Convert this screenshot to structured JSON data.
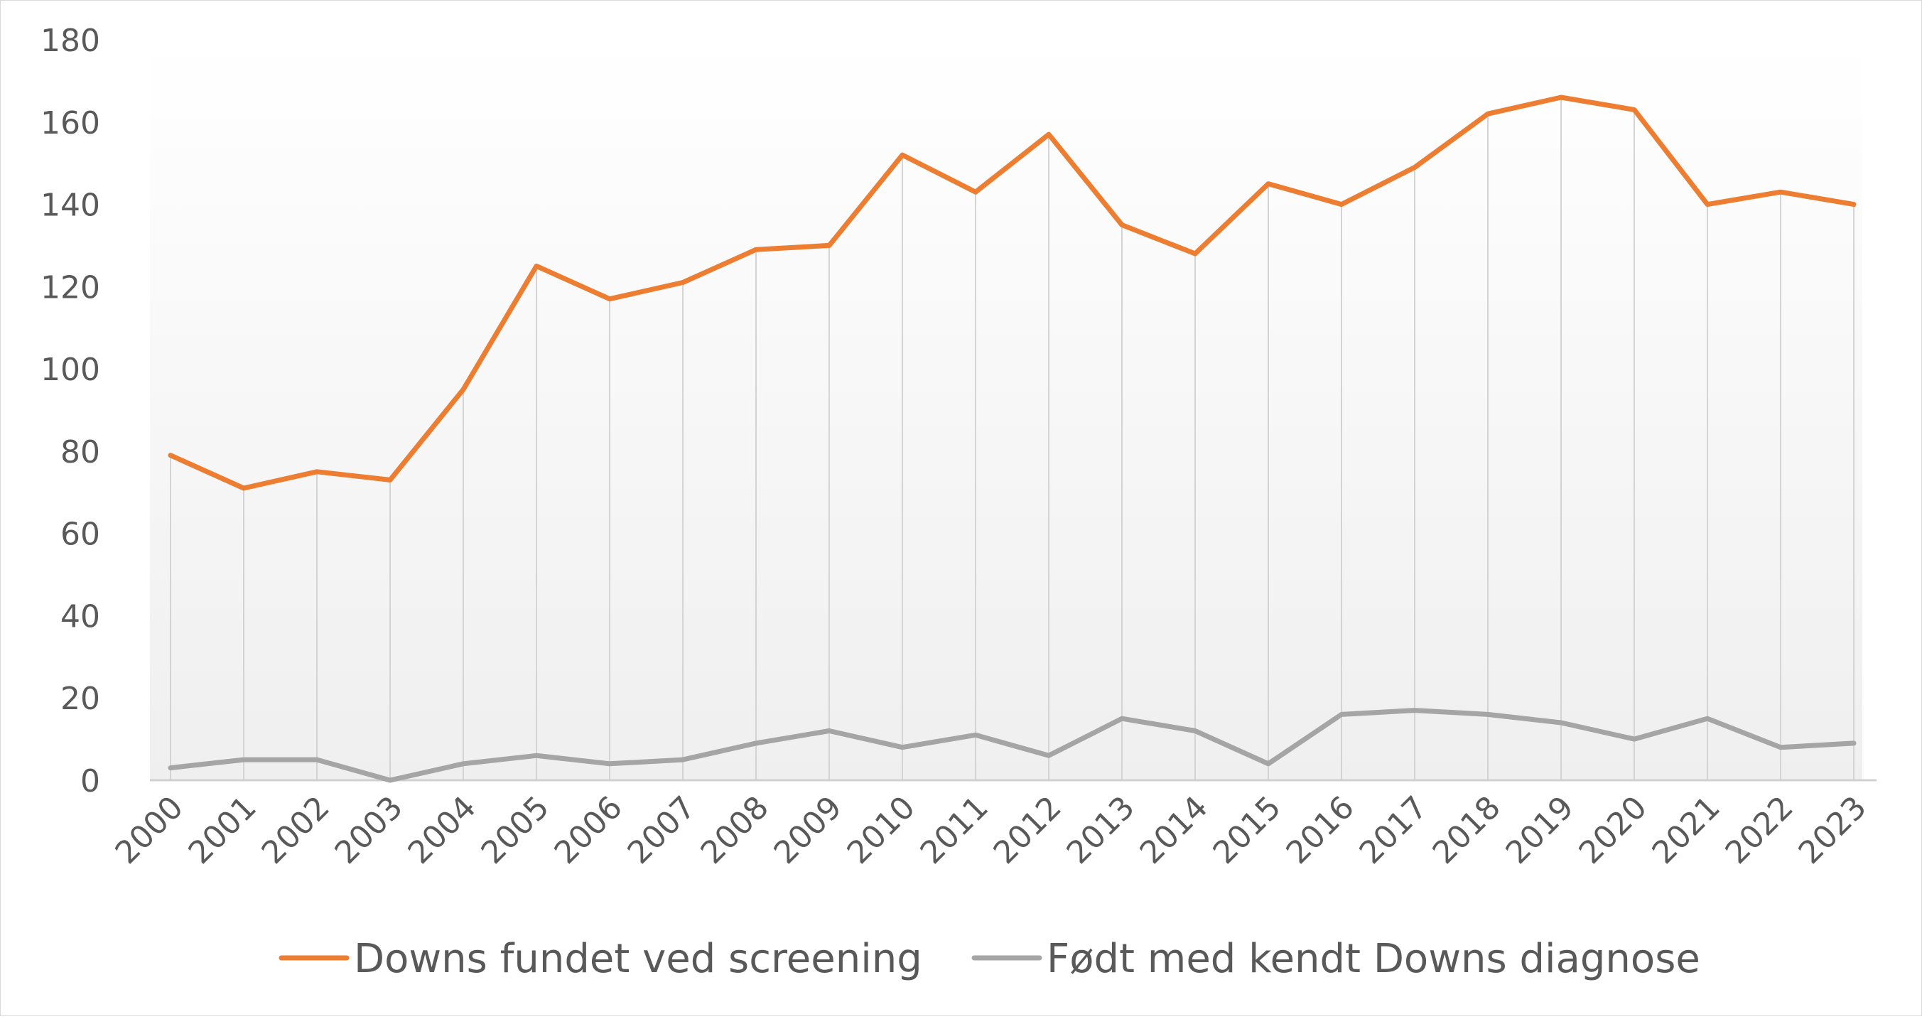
{
  "chart_data": {
    "type": "line",
    "title": "",
    "xlabel": "",
    "ylabel": "",
    "ylim": [
      0,
      180
    ],
    "yticks": [
      0,
      20,
      40,
      60,
      80,
      100,
      120,
      140,
      160,
      180
    ],
    "categories": [
      "2000",
      "2001",
      "2002",
      "2003",
      "2004",
      "2005",
      "2006",
      "2007",
      "2008",
      "2009",
      "2010",
      "2011",
      "2012",
      "2013",
      "2014",
      "2015",
      "2016",
      "2017",
      "2018",
      "2019",
      "2020",
      "2021",
      "2022",
      "2023"
    ],
    "series": [
      {
        "name": "Downs fundet ved screening",
        "color": "#ED7D31",
        "values": [
          79,
          71,
          75,
          73,
          95,
          125,
          117,
          121,
          129,
          130,
          152,
          143,
          157,
          135,
          128,
          145,
          140,
          149,
          162,
          166,
          163,
          140,
          143,
          140
        ]
      },
      {
        "name": "Født med kendt Downs diagnose",
        "color": "#A5A5A5",
        "values": [
          3,
          5,
          5,
          0,
          4,
          6,
          4,
          5,
          9,
          12,
          8,
          11,
          6,
          15,
          12,
          4,
          16,
          17,
          16,
          14,
          10,
          15,
          8,
          9
        ]
      }
    ],
    "grid": "vertical drop lines",
    "legend_position": "bottom",
    "background": "gradient white to light gray"
  }
}
